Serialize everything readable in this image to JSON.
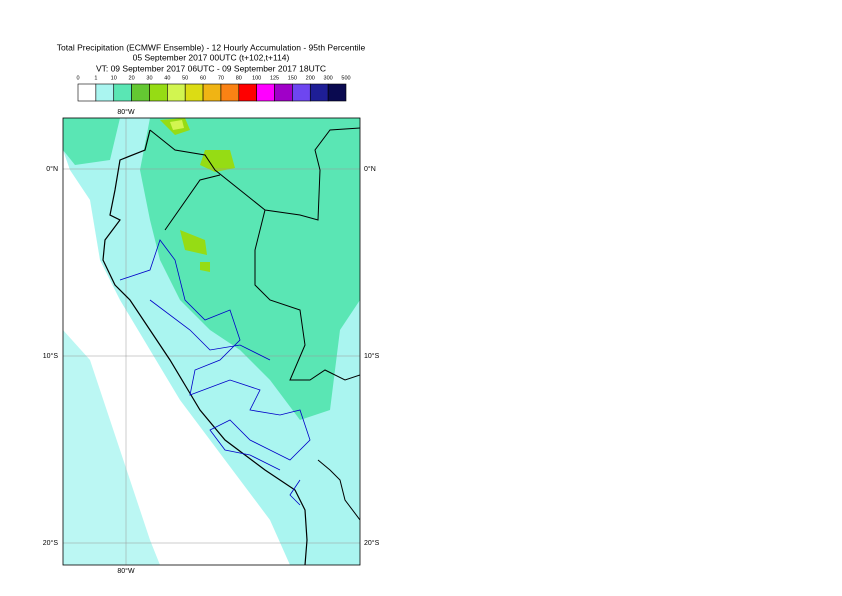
{
  "header": {
    "title": "Total Precipitation (ECMWF Ensemble) - 12 Hourly Accumulation - 95th Percentile",
    "base_time": "05 September 2017 00UTC (t+102,t+114)",
    "valid_time": "VT: 09 September 2017 06UTC - 09 September 2017 18UTC"
  },
  "legend": {
    "labels": [
      "0",
      "1",
      "10",
      "20",
      "30",
      "40",
      "50",
      "60",
      "70",
      "80",
      "100",
      "125",
      "150",
      "200",
      "300",
      "500"
    ],
    "colors": [
      "#ffffff",
      "#aaf5f0",
      "#5ae6b4",
      "#64c832",
      "#96dc14",
      "#d2f550",
      "#dcdc14",
      "#f0b414",
      "#fa8214",
      "#ff0000",
      "#ff00ff",
      "#a000c8",
      "#6e46f0",
      "#1e1e96",
      "#0a0a50"
    ]
  },
  "map": {
    "lon_top": "80°W",
    "lon_bottom": "80°W",
    "lat_left": [
      "0°N",
      "10°S",
      "20°S"
    ],
    "lat_right": [
      "0°N",
      "10°S",
      "20°S"
    ]
  }
}
